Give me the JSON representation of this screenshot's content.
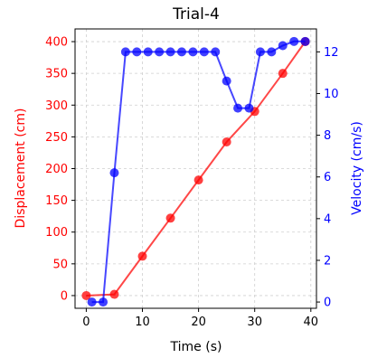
{
  "chart_data": {
    "type": "line",
    "title": "Trial-4",
    "xlabel": "Time (s)",
    "grid": true,
    "xlim": [
      -2,
      41
    ],
    "x_ticks": [
      0,
      10,
      20,
      30,
      40
    ],
    "y_left": {
      "label": "Displacement (cm)",
      "color": "#ff0000",
      "lim": [
        -20,
        420
      ],
      "ticks": [
        0,
        50,
        100,
        150,
        200,
        250,
        300,
        350,
        400
      ]
    },
    "y_right": {
      "label": "Velocity (cm/s)",
      "color": "#0000ff",
      "lim": [
        -0.3,
        13.1
      ],
      "ticks": [
        0,
        2,
        4,
        6,
        8,
        10,
        12
      ]
    },
    "series": [
      {
        "axis": "left",
        "color": "#ff0000",
        "x": [
          0,
          5,
          10,
          15,
          20,
          25,
          30,
          35,
          39
        ],
        "values": [
          0,
          2,
          62,
          122,
          182,
          242,
          290,
          350,
          400
        ]
      },
      {
        "axis": "right",
        "color": "#0000ff",
        "x": [
          1,
          3,
          5,
          7,
          9,
          11,
          13,
          15,
          17,
          19,
          21,
          23,
          25,
          27,
          29,
          31,
          33,
          35,
          37,
          39
        ],
        "values": [
          0,
          0,
          6.2,
          12,
          12,
          12,
          12,
          12,
          12,
          12,
          12,
          12,
          10.6,
          9.3,
          9.3,
          12,
          12,
          12.3,
          12.5,
          12.5
        ]
      }
    ]
  }
}
